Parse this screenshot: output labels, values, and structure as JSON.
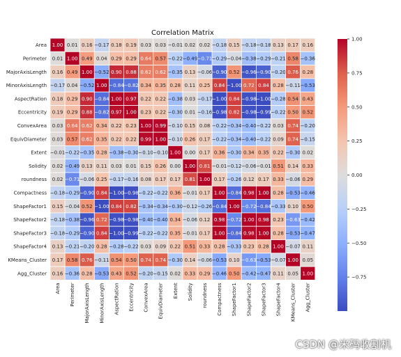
{
  "watermark": "CSDN @米码收割机",
  "chart_data": {
    "type": "heatmap",
    "title": "Correlation Matrix",
    "labels": [
      "Area",
      "Perimeter",
      "MajorAxisLength",
      "MinorAxisLength",
      "AspectRation",
      "Eccentricity",
      "ConvexArea",
      "EquivDiameter",
      "Extent",
      "Solidity",
      "roundness",
      "Compactness",
      "ShapeFactor1",
      "ShapeFactor2",
      "ShapeFactor3",
      "ShapeFactor4",
      "KMeans_Cluster",
      "Agg_Cluster"
    ],
    "matrix": [
      [
        1.0,
        0.01,
        0.16,
        -0.17,
        0.18,
        0.19,
        0.03,
        0.03,
        -0.01,
        0.02,
        0.02,
        -0.18,
        0.15,
        -0.18,
        -0.18,
        0.13,
        0.17,
        0.16
      ],
      [
        0.01,
        1.0,
        0.49,
        0.04,
        0.29,
        0.29,
        0.64,
        0.57,
        -0.22,
        -0.49,
        -0.71,
        -0.29,
        -0.04,
        -0.38,
        -0.29,
        -0.21,
        0.58,
        -0.36
      ],
      [
        0.16,
        0.49,
        1.0,
        -0.52,
        0.9,
        0.88,
        0.62,
        0.62,
        -0.35,
        0.13,
        -0.06,
        -0.9,
        0.52,
        -0.96,
        -0.9,
        -0.2,
        0.76,
        0.28
      ],
      [
        -0.17,
        0.04,
        -0.52,
        1.0,
        -0.84,
        -0.82,
        0.34,
        0.35,
        0.28,
        0.11,
        0.25,
        0.84,
        -1.0,
        0.72,
        0.84,
        0.28,
        -0.11,
        -0.53
      ],
      [
        0.18,
        0.29,
        0.9,
        -0.84,
        1.0,
        0.97,
        0.22,
        0.22,
        -0.38,
        0.03,
        -0.17,
        -1.0,
        0.84,
        -0.98,
        -1.0,
        -0.28,
        0.54,
        0.43
      ],
      [
        0.19,
        0.29,
        0.88,
        -0.82,
        0.97,
        1.0,
        0.23,
        0.22,
        -0.3,
        0.01,
        -0.16,
        -0.98,
        0.82,
        -0.98,
        -0.99,
        -0.22,
        0.5,
        0.52
      ],
      [
        0.03,
        0.64,
        0.62,
        0.34,
        0.22,
        0.23,
        1.0,
        0.99,
        -0.1,
        0.15,
        0.08,
        -0.22,
        -0.34,
        -0.4,
        -0.22,
        0.03,
        0.74,
        -0.2
      ],
      [
        0.03,
        0.57,
        0.62,
        0.35,
        0.22,
        0.22,
        0.99,
        1.0,
        -0.1,
        0.26,
        0.17,
        -0.22,
        -0.34,
        -0.4,
        -0.22,
        0.09,
        0.74,
        -0.15
      ],
      [
        -0.01,
        -0.22,
        -0.35,
        0.28,
        -0.38,
        -0.3,
        -0.1,
        -0.1,
        1.0,
        0.0,
        0.17,
        0.36,
        -0.3,
        0.34,
        0.35,
        0.22,
        -0.3,
        0.02
      ],
      [
        0.02,
        -0.49,
        0.13,
        0.11,
        0.03,
        0.01,
        0.15,
        0.26,
        0.0,
        1.0,
        0.81,
        -0.01,
        -0.12,
        -0.06,
        -0.01,
        0.51,
        0.14,
        0.33
      ],
      [
        0.02,
        -0.71,
        -0.06,
        0.25,
        -0.17,
        -0.16,
        0.08,
        0.17,
        0.17,
        0.81,
        1.0,
        0.17,
        -0.26,
        0.12,
        0.17,
        0.33,
        -0.06,
        0.29
      ],
      [
        -0.18,
        -0.29,
        -0.9,
        0.84,
        -1.0,
        -0.98,
        -0.22,
        -0.22,
        0.36,
        -0.01,
        0.17,
        1.0,
        -0.84,
        0.98,
        1.0,
        0.28,
        -0.53,
        -0.46
      ],
      [
        0.15,
        -0.04,
        0.52,
        -1.0,
        0.84,
        0.82,
        -0.34,
        -0.34,
        -0.3,
        -0.12,
        -0.26,
        -0.84,
        1.0,
        -0.72,
        -0.84,
        -0.33,
        0.1,
        0.5
      ],
      [
        -0.18,
        -0.38,
        -0.96,
        0.72,
        -0.98,
        -0.98,
        -0.4,
        -0.4,
        0.34,
        -0.06,
        0.12,
        0.98,
        -0.72,
        1.0,
        0.98,
        0.23,
        -0.63,
        -0.42
      ],
      [
        -0.18,
        -0.29,
        -0.9,
        0.84,
        -1.0,
        -0.99,
        -0.22,
        -0.22,
        0.35,
        -0.01,
        0.17,
        1.0,
        -0.84,
        0.98,
        1.0,
        0.28,
        -0.53,
        -0.47
      ],
      [
        0.13,
        -0.21,
        -0.2,
        0.28,
        -0.28,
        -0.22,
        0.03,
        0.09,
        0.22,
        0.51,
        0.33,
        0.28,
        -0.33,
        0.23,
        0.28,
        1.0,
        -0.07,
        0.11
      ],
      [
        0.17,
        0.58,
        0.76,
        -0.11,
        0.54,
        0.5,
        0.74,
        0.74,
        -0.3,
        0.14,
        -0.06,
        -0.53,
        0.1,
        -0.63,
        -0.53,
        -0.07,
        1.0,
        0.05
      ],
      [
        0.16,
        -0.36,
        0.28,
        -0.53,
        0.43,
        0.52,
        -0.2,
        -0.15,
        0.02,
        0.33,
        0.29,
        -0.46,
        0.5,
        -0.42,
        -0.47,
        0.11,
        0.05,
        1.0
      ]
    ],
    "vmin": -1.0,
    "vmax": 1.0,
    "colormap": "coolwarm",
    "colorbar_ticks": [
      1.0,
      0.75,
      0.5,
      0.25,
      0.0,
      -0.25,
      -0.5,
      -0.75
    ],
    "grid_lines_color": "#ffffff"
  }
}
